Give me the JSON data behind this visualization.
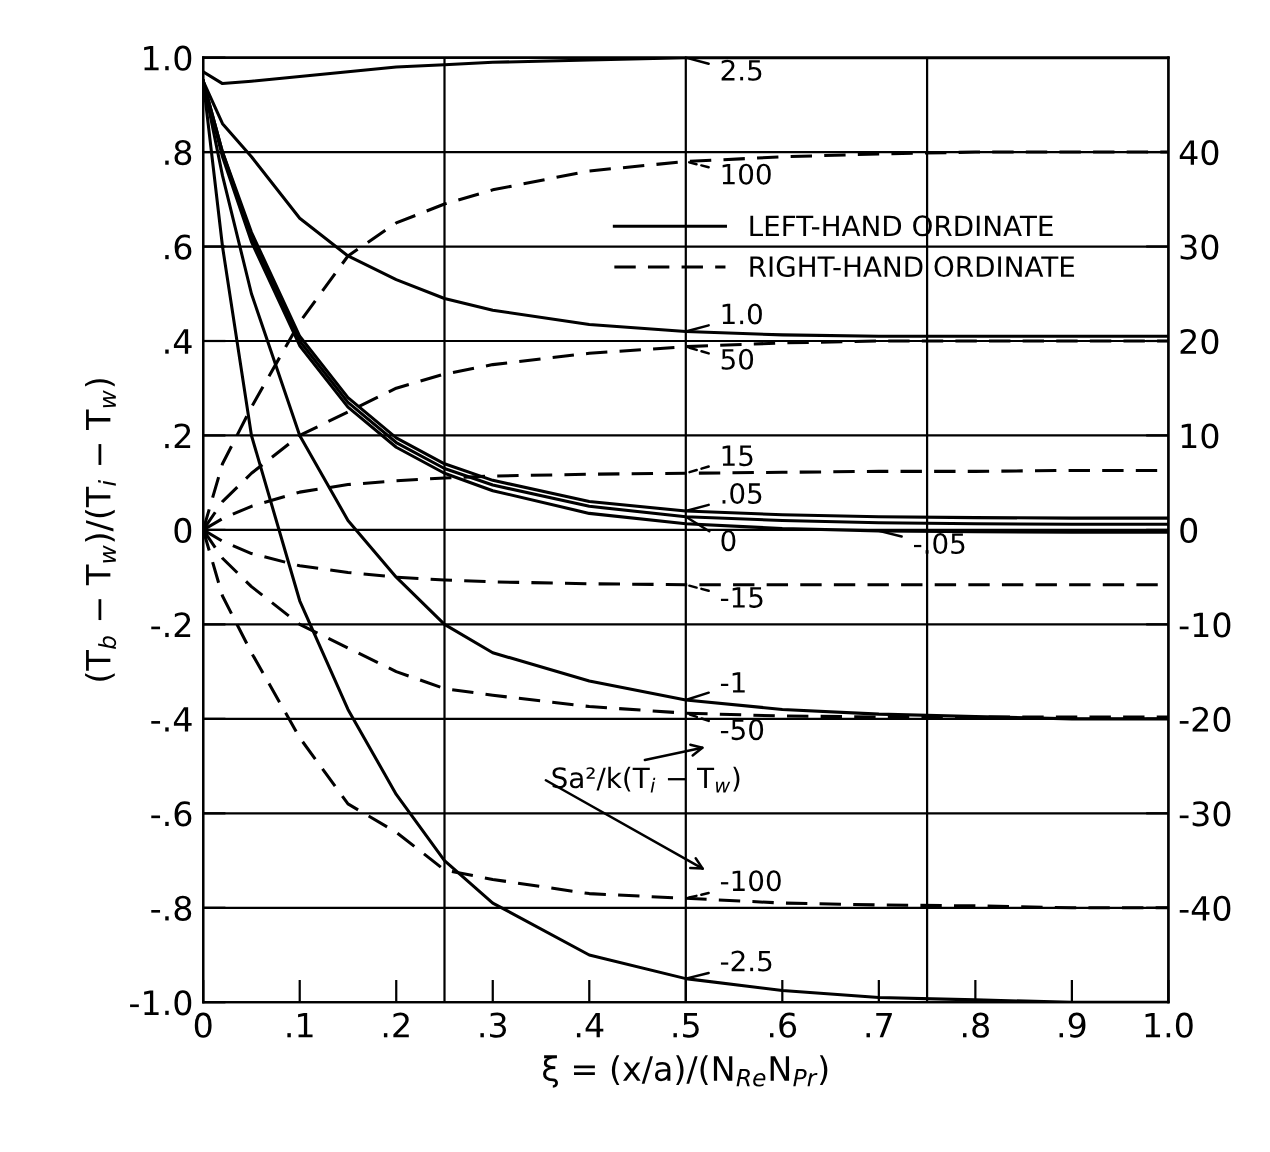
{
  "chart_data": {
    "type": "line",
    "xlabel": "ξ = (x/a)/(N$_{Re}$N$_{Pr}$)",
    "ylabel": "(T$_{b}$ − T$_{w}$)/(T$_{i}$ − T$_{w}$)",
    "legend_title": "Sa²/k(T$_{i}$ − T$_{w}$)",
    "x": [
      0,
      0.02,
      0.05,
      0.1,
      0.15,
      0.2,
      0.25,
      0.3,
      0.4,
      0.5,
      0.6,
      0.7,
      0.8,
      0.9,
      1.0
    ],
    "series": [
      {
        "name": "2.5",
        "color": "#000000",
        "line_style": "solid",
        "values": [
          0.97,
          0.945,
          0.95,
          0.96,
          0.97,
          0.98,
          0.985,
          0.99,
          0.995,
          1.0,
          1.0,
          1.0,
          1.0,
          1.0,
          1.0
        ]
      },
      {
        "name": "1.0",
        "color": "#000000",
        "line_style": "solid",
        "values": [
          0.95,
          0.86,
          0.79,
          0.66,
          0.58,
          0.53,
          0.49,
          0.465,
          0.435,
          0.42,
          0.413,
          0.41,
          0.41,
          0.41,
          0.41
        ]
      },
      {
        "name": ".05",
        "color": "#000000",
        "line_style": "solid",
        "values": [
          0.95,
          0.8,
          0.63,
          0.41,
          0.28,
          0.195,
          0.14,
          0.105,
          0.06,
          0.04,
          0.032,
          0.028,
          0.026,
          0.025,
          0.025
        ]
      },
      {
        "name": "0",
        "color": "#000000",
        "line_style": "solid",
        "values": [
          0.95,
          0.8,
          0.62,
          0.4,
          0.27,
          0.185,
          0.13,
          0.095,
          0.05,
          0.028,
          0.02,
          0.015,
          0.013,
          0.012,
          0.012
        ]
      },
      {
        "name": "-.05",
        "color": "#000000",
        "line_style": "solid",
        "values": [
          0.95,
          0.79,
          0.61,
          0.39,
          0.26,
          0.175,
          0.12,
          0.083,
          0.035,
          0.013,
          0.003,
          -0.002,
          -0.004,
          -0.005,
          -0.005
        ]
      },
      {
        "name": "-1",
        "color": "#000000",
        "line_style": "solid",
        "values": [
          0.95,
          0.75,
          0.5,
          0.2,
          0.02,
          -0.1,
          -0.2,
          -0.26,
          -0.32,
          -0.36,
          -0.38,
          -0.39,
          -0.395,
          -0.4,
          -0.4
        ]
      },
      {
        "name": "-2.5",
        "color": "#000000",
        "line_style": "solid",
        "values": [
          0.95,
          0.6,
          0.2,
          -0.15,
          -0.38,
          -0.56,
          -0.7,
          -0.79,
          -0.9,
          -0.95,
          -0.975,
          -0.99,
          -0.995,
          -1.0,
          -1.0
        ]
      },
      {
        "name": "100",
        "color": "#000000",
        "line_style": "dashed",
        "axis": "y2",
        "values": [
          0,
          7,
          13,
          22,
          29,
          32.5,
          34.5,
          36,
          38,
          39,
          39.5,
          39.8,
          40,
          40,
          40
        ]
      },
      {
        "name": "50",
        "color": "#000000",
        "line_style": "dashed",
        "axis": "y2",
        "values": [
          0,
          3,
          6,
          10,
          12.5,
          15,
          16.5,
          17.5,
          18.7,
          19.4,
          19.8,
          20,
          20,
          20,
          20
        ]
      },
      {
        "name": "15",
        "color": "#000000",
        "line_style": "dashed",
        "axis": "y2",
        "values": [
          0,
          1.2,
          2.5,
          4,
          4.8,
          5.2,
          5.5,
          5.7,
          5.9,
          6,
          6.1,
          6.2,
          6.2,
          6.3,
          6.3
        ]
      },
      {
        "name": "-15",
        "color": "#000000",
        "line_style": "dashed",
        "axis": "y2",
        "values": [
          0,
          -1.2,
          -2.5,
          -3.8,
          -4.5,
          -5,
          -5.3,
          -5.5,
          -5.7,
          -5.8,
          -5.8,
          -5.8,
          -5.8,
          -5.8,
          -5.8
        ]
      },
      {
        "name": "-50",
        "color": "#000000",
        "line_style": "dashed",
        "axis": "y2",
        "values": [
          0,
          -3,
          -6,
          -10,
          -12.5,
          -15,
          -16.8,
          -17.5,
          -18.7,
          -19.4,
          -19.7,
          -19.8,
          -19.8,
          -19.8,
          -19.8
        ]
      },
      {
        "name": "-100",
        "color": "#000000",
        "line_style": "dashed",
        "axis": "y2",
        "values": [
          0,
          -7,
          -13,
          -22,
          -29,
          -32,
          -36,
          -37,
          -38.5,
          -39,
          -39.5,
          -39.7,
          -39.8,
          -40,
          -40
        ]
      }
    ],
    "annotations": [
      "LEFT-HAND ORDINATE",
      "RIGHT-HAND ORDINATE"
    ],
    "legend": "top right",
    "grid": "y",
    "ref_lines": [
      {
        "axis": "x",
        "value": 0.25
      },
      {
        "axis": "x",
        "value": 0.5
      },
      {
        "axis": "x",
        "value": 0.75
      }
    ],
    "xlim": [
      0,
      1.0
    ],
    "xticks": [
      0,
      {
        "value": 0.1,
        "label": ".1"
      },
      {
        "value": 0.2,
        "label": ".2"
      },
      {
        "value": 0.3,
        "label": ".3"
      },
      {
        "value": 0.4,
        "label": ".4"
      },
      {
        "value": 0.5,
        "label": ".5"
      },
      {
        "value": 0.6,
        "label": ".6"
      },
      {
        "value": 0.7,
        "label": ".7"
      },
      {
        "value": 0.8,
        "label": ".8"
      },
      {
        "value": 0.9,
        "label": ".9"
      },
      {
        "value": 1.0,
        "label": "1.0"
      }
    ],
    "ylim": [
      -1.0,
      1.0
    ],
    "yticks": [
      {
        "value": -1.0,
        "label": "-1.0"
      },
      {
        "value": -0.8,
        "label": "-.8"
      },
      {
        "value": -0.6,
        "label": "-.6"
      },
      {
        "value": -0.4,
        "label": "-.4"
      },
      {
        "value": -0.2,
        "label": "-.2"
      },
      0,
      {
        "value": 0.2,
        "label": ".2"
      },
      {
        "value": 0.4,
        "label": ".4"
      },
      {
        "value": 0.6,
        "label": ".6"
      },
      {
        "value": 0.8,
        "label": ".8"
      },
      {
        "value": 1.0,
        "label": "1.0"
      }
    ],
    "y2lim": [
      -50,
      50
    ],
    "y2ticks": [
      {
        "value": -40,
        "label": "-40"
      },
      {
        "value": -30,
        "label": "-30"
      },
      {
        "value": -20,
        "label": "-20"
      },
      {
        "value": -10,
        "label": "-10"
      },
      0,
      10,
      20,
      30,
      40
    ]
  }
}
